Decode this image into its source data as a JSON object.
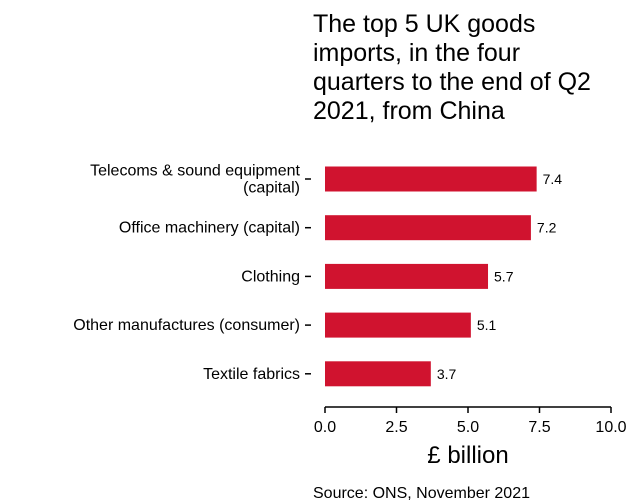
{
  "chart_data": {
    "type": "bar",
    "orientation": "horizontal",
    "title": "The top 5 UK goods imports, in the four quarters to the end of Q2 2021, from China",
    "title_lines": [
      "The top 5 UK goods",
      "imports, in the four",
      "quarters to the end of Q2",
      "2021, from China"
    ],
    "categories": [
      "Telecoms & sound equipment (capital)",
      "Office machinery (capital)",
      "Clothing",
      "Other manufactures (consumer)",
      "Textile fabrics"
    ],
    "category_lines": [
      [
        "Telecoms & sound equipment",
        "(capital)"
      ],
      [
        "Office machinery (capital)"
      ],
      [
        "Clothing"
      ],
      [
        "Other manufactures (consumer)"
      ],
      [
        "Textile fabrics"
      ]
    ],
    "values": [
      7.4,
      7.2,
      5.7,
      5.1,
      3.7
    ],
    "value_labels": [
      "7.4",
      "7.2",
      "5.7",
      "5.1",
      "3.7"
    ],
    "xlabel": "£ billion",
    "ylabel": "",
    "xlim": [
      0,
      10
    ],
    "xticks": [
      0,
      2.5,
      5,
      7.5,
      10
    ],
    "xtick_labels": [
      "0.0",
      "2.5",
      "5.0",
      "7.5",
      "10.0"
    ],
    "grid": false,
    "bar_color": "#d0132f",
    "source": "Source: ONS, November 2021"
  }
}
